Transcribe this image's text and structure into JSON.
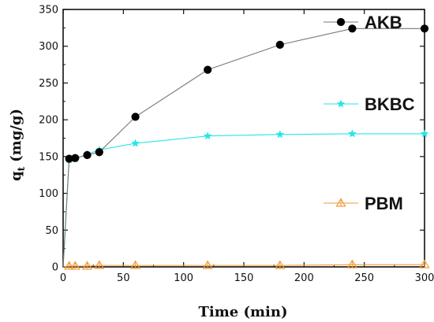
{
  "chart_data": {
    "type": "line",
    "xlabel": "Time (min)",
    "ylabel_main": "q",
    "ylabel_sub": "t",
    "ylabel_unit": "(mg/g)",
    "xlim": [
      0,
      300
    ],
    "ylim": [
      0,
      350
    ],
    "xticks": [
      0,
      50,
      100,
      150,
      200,
      250,
      300
    ],
    "yticks": [
      0,
      50,
      100,
      150,
      200,
      250,
      300,
      350
    ],
    "grid": false,
    "series": [
      {
        "name": "AKB",
        "color": "#000000",
        "line_color": "#777777",
        "marker": "circle",
        "x": [
          0,
          5,
          10,
          20,
          30,
          60,
          120,
          180,
          240,
          300
        ],
        "y": [
          0,
          147,
          148,
          152,
          156,
          204,
          268,
          302,
          324,
          324
        ]
      },
      {
        "name": "BKBC",
        "color": "#28e6e6",
        "line_color": "#28e6e6",
        "marker": "star",
        "x": [
          0,
          5,
          10,
          20,
          30,
          60,
          120,
          180,
          240,
          300
        ],
        "y": [
          0,
          146,
          147,
          153,
          159,
          168,
          178,
          180,
          181,
          181
        ]
      },
      {
        "name": "PBM",
        "color": "#f29a33",
        "line_color": "#f29a33",
        "marker": "triangle",
        "x": [
          0,
          5,
          10,
          20,
          30,
          60,
          120,
          180,
          240,
          300
        ],
        "y": [
          0,
          1,
          1,
          1,
          2,
          2,
          2,
          2,
          3,
          3
        ]
      }
    ]
  }
}
